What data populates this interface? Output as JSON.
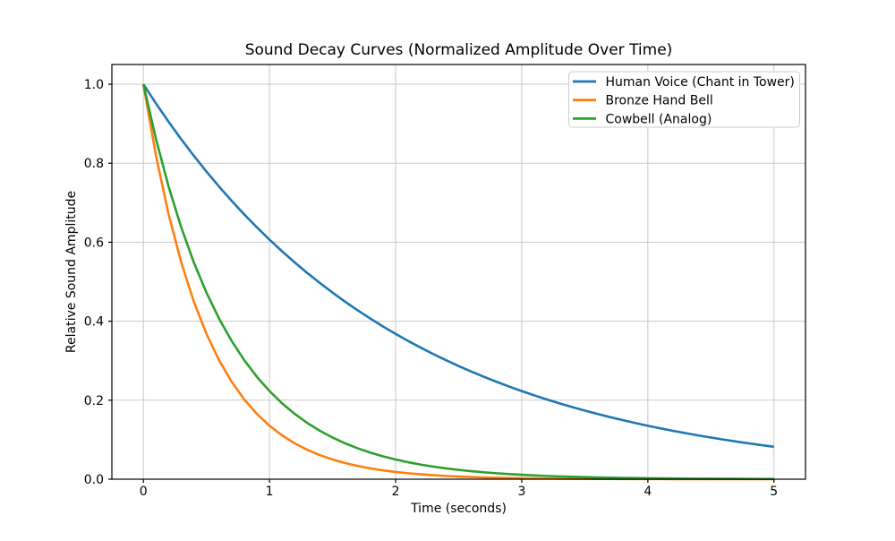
{
  "figure": {
    "background": "#ffffff"
  },
  "chart_data": {
    "type": "line",
    "title": "Sound Decay Curves (Normalized Amplitude Over Time)",
    "xlabel": "Time (seconds)",
    "ylabel": "Relative Sound Amplitude",
    "xlim": [
      -0.25,
      5.25
    ],
    "ylim": [
      0,
      1.05
    ],
    "xticks": [
      0,
      1,
      2,
      3,
      4,
      5
    ],
    "xtick_labels": [
      "0",
      "1",
      "2",
      "3",
      "4",
      "5"
    ],
    "yticks": [
      0.0,
      0.2,
      0.4,
      0.6,
      0.8,
      1.0
    ],
    "ytick_labels": [
      "0.0",
      "0.2",
      "0.4",
      "0.6",
      "0.8",
      "1.0"
    ],
    "grid": true,
    "grid_color": "#c9c9c9",
    "axis_color": "#000000",
    "line_width": 2,
    "legend": {
      "position": "upper right",
      "background": "#ffffff",
      "border_color": "#cccccc"
    },
    "x": [
      0,
      0.1,
      0.2,
      0.3,
      0.4,
      0.5,
      0.6,
      0.7,
      0.8,
      0.9,
      1,
      1.1,
      1.2,
      1.3,
      1.4,
      1.5,
      1.6,
      1.7,
      1.8,
      1.9,
      2,
      2.1,
      2.2,
      2.3,
      2.4,
      2.5,
      2.6,
      2.7,
      2.8,
      2.9,
      3,
      3.1,
      3.2,
      3.3,
      3.4,
      3.5,
      3.6,
      3.7,
      3.8,
      3.9,
      4,
      4.1,
      4.2,
      4.3,
      4.4,
      4.5,
      4.6,
      4.7,
      4.8,
      4.9,
      5
    ],
    "series": [
      {
        "name": "Human Voice (Chant in Tower)",
        "color": "#1f77b4",
        "values": [
          1,
          0.9512,
          0.9048,
          0.8607,
          0.8187,
          0.7788,
          0.7408,
          0.7047,
          0.6703,
          0.6376,
          0.6065,
          0.5769,
          0.5488,
          0.522,
          0.4966,
          0.4724,
          0.4493,
          0.4274,
          0.4066,
          0.3867,
          0.3679,
          0.3499,
          0.3329,
          0.3166,
          0.3012,
          0.2865,
          0.2725,
          0.2592,
          0.2466,
          0.2346,
          0.2231,
          0.2122,
          0.2019,
          0.192,
          0.1827,
          0.1738,
          0.1653,
          0.1572,
          0.1496,
          0.1423,
          0.1353,
          0.1287,
          0.1225,
          0.1165,
          0.1108,
          0.1054,
          0.1003,
          0.0954,
          0.0907,
          0.0863,
          0.0821
        ]
      },
      {
        "name": "Bronze Hand Bell",
        "color": "#ff7f0e",
        "values": [
          1,
          0.8187,
          0.6703,
          0.5488,
          0.4493,
          0.3679,
          0.3012,
          0.2466,
          0.2019,
          0.1653,
          0.1353,
          0.1108,
          0.0907,
          0.0743,
          0.0608,
          0.0498,
          0.0408,
          0.0334,
          0.0273,
          0.0224,
          0.0183,
          0.015,
          0.0123,
          0.0101,
          0.0082,
          0.0067,
          0.0055,
          0.0045,
          0.0037,
          0.003,
          0.0025,
          0.002,
          0.0017,
          0.0014,
          0.0011,
          0.0009,
          0.0007,
          0.0006,
          0.0005,
          0.0004,
          0.0003,
          0.0003,
          0.0002,
          0.0002,
          0.0002,
          0.0001,
          0.0001,
          0.0001,
          0.0001,
          0.0001,
          0.0001
        ]
      },
      {
        "name": "Cowbell (Analog)",
        "color": "#2ca02c",
        "values": [
          1,
          0.8607,
          0.7408,
          0.6376,
          0.5488,
          0.4724,
          0.4066,
          0.3499,
          0.3012,
          0.2592,
          0.2231,
          0.192,
          0.1653,
          0.1423,
          0.1225,
          0.1054,
          0.0907,
          0.0781,
          0.0672,
          0.0578,
          0.0498,
          0.0429,
          0.0369,
          0.0317,
          0.0273,
          0.0235,
          0.0202,
          0.0174,
          0.015,
          0.0129,
          0.0111,
          0.0096,
          0.0082,
          0.0071,
          0.0061,
          0.0052,
          0.0045,
          0.0039,
          0.0033,
          0.0029,
          0.0025,
          0.0021,
          0.0018,
          0.0016,
          0.0014,
          0.0012,
          0.001,
          0.0009,
          0.0007,
          0.0006,
          0.0006
        ]
      }
    ]
  }
}
